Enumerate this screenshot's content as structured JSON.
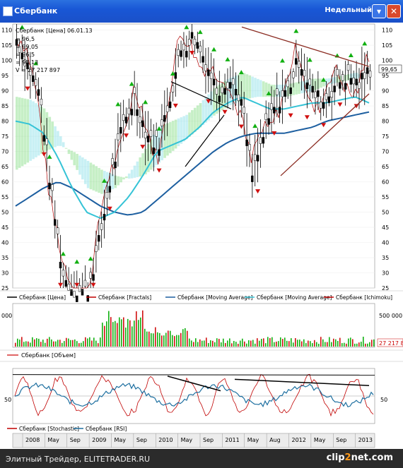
{
  "window": {
    "title": "Сбербанк",
    "period": "Недельный",
    "minimize_glyph": "▾",
    "close_glyph": "✕"
  },
  "info_box": {
    "line1": "Сбербанк [Цена] 06.01.13",
    "lines": [
      "= 96,5",
      "= 99,05",
      "= 96,5",
      "= 98,13",
      "V = 27 217 897"
    ]
  },
  "price_axis": {
    "ticks": [
      110,
      105,
      100,
      95,
      90,
      85,
      80,
      75,
      70,
      65,
      60,
      55,
      50,
      45,
      40,
      35,
      30,
      25
    ],
    "current_label": "99,65"
  },
  "legend_main": [
    {
      "label": "Сбербанк [Цена]",
      "color": "#000000"
    },
    {
      "label": "Сбербанк [Fractals]",
      "color": "#c00000"
    },
    {
      "label": "Сбербанк [Moving Average]",
      "color": "#1d5fa0"
    },
    {
      "label": "Сбербанк [Moving Average]",
      "color": "#35c3d6"
    },
    {
      "label": "Сбербанк [Ichimoku]",
      "color": "#c00000"
    }
  ],
  "volume": {
    "axis_top": "500 000 0",
    "axis_left": "000",
    "last_value": "27 217 89",
    "legend": "Сбербанк [Объем]"
  },
  "oscillator": {
    "level_label": "50",
    "legend": [
      {
        "label": "Сбербанк [Stochastic]",
        "color": "#c00000"
      },
      {
        "label": "Сбербанк [RSI]",
        "color": "#1d6fa0"
      }
    ]
  },
  "x_axis": {
    "labels": [
      "2008",
      "May",
      "Sep",
      "2009",
      "May",
      "Sep",
      "2010",
      "May",
      "Sep",
      "2011",
      "May",
      "Aug",
      "2012",
      "May",
      "Sep",
      "2013"
    ]
  },
  "footer": {
    "caption": "Элитный Трейдер, ELITETRADER.RU",
    "brand_prefix": "clip",
    "brand_two": "2",
    "brand_suffix": "net.com"
  },
  "colors": {
    "up": "#11b011",
    "down": "#d01010",
    "cloud_green": "#33c633",
    "cloud_cyan": "#3bc8d8",
    "ma_long": "#1d5fa0",
    "ma_short": "#35c3d6",
    "ichimoku": "#b00000",
    "trend": "#8b2c22"
  },
  "chart_data": {
    "type": "line",
    "title": "Сбербанк",
    "x": [
      "2008",
      "May",
      "Sep",
      "2009",
      "May",
      "Sep",
      "2010",
      "May",
      "Sep",
      "2011",
      "May",
      "Aug",
      "2012",
      "May",
      "Sep",
      "2013"
    ],
    "price_close": [
      107,
      98,
      88,
      55,
      28,
      24,
      24,
      40,
      62,
      78,
      88,
      76,
      72,
      88,
      104,
      108,
      100,
      90,
      94,
      88,
      62,
      76,
      86,
      90,
      101,
      90,
      86,
      92,
      95,
      92,
      97
    ],
    "ma_long": [
      52,
      55,
      58,
      60,
      58,
      55,
      52,
      50,
      49,
      50,
      54,
      58,
      62,
      66,
      70,
      73,
      75,
      76,
      76,
      76,
      77,
      78,
      80,
      81,
      82,
      83
    ],
    "ma_short": [
      80,
      79,
      76,
      68,
      58,
      50,
      48,
      50,
      55,
      62,
      70,
      72,
      74,
      78,
      83,
      86,
      88,
      86,
      84,
      84,
      85,
      86,
      86,
      87,
      88,
      86
    ],
    "volume_last": "27 217 89",
    "ylim": [
      25,
      112
    ],
    "series_names": [
      "Сбербанк [Цена]",
      "Сбербанк [Fractals]",
      "Сбербанк [Moving Average]",
      "Сбербанк [Moving Average]",
      "Сбербанк [Ichimoku]",
      "Сбербанк [Объем]",
      "Сбербанк [Stochastic]",
      "Сбербанк [RSI]"
    ]
  }
}
